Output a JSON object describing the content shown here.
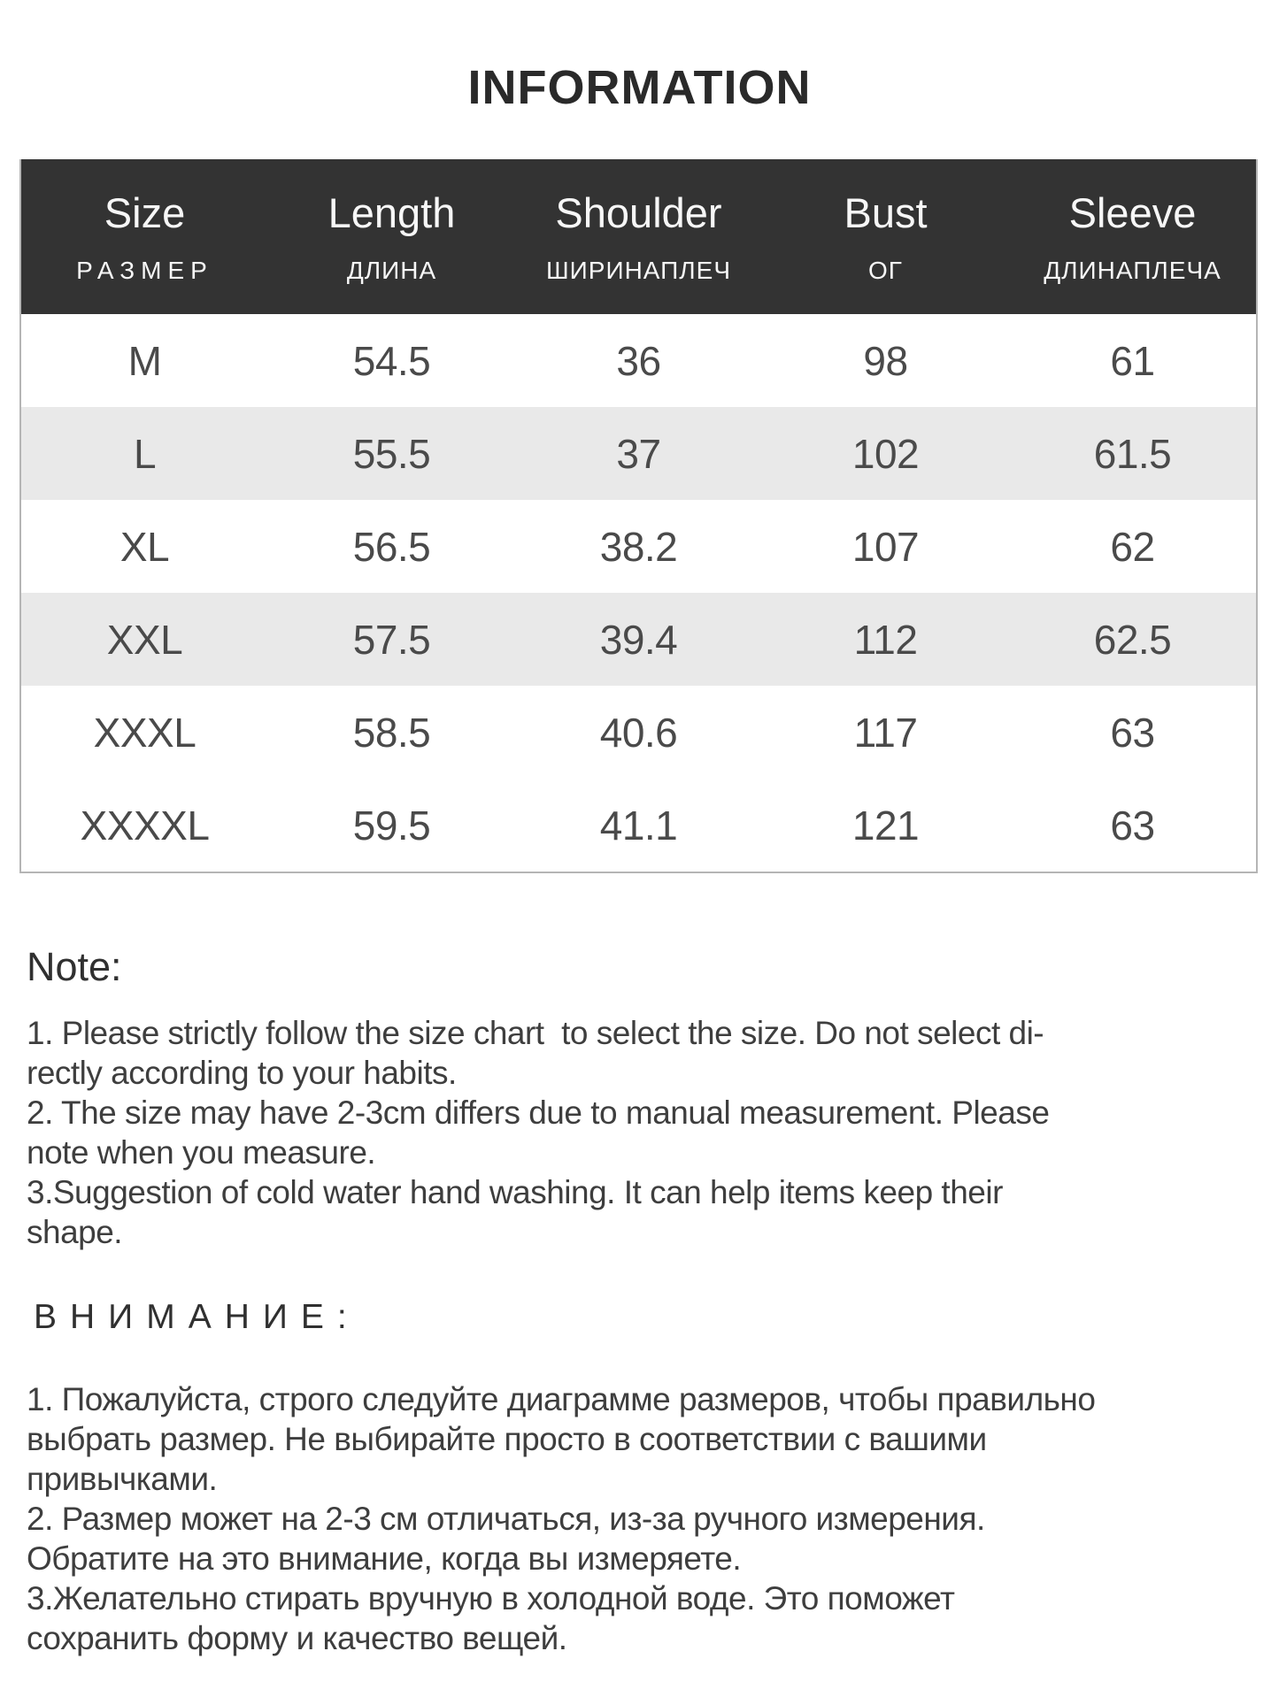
{
  "page": {
    "title": "INFORMATION"
  },
  "size_table": {
    "columns": [
      {
        "en": "Size",
        "ru": "РАЗМЕР"
      },
      {
        "en": "Length",
        "ru": "ДЛИНА"
      },
      {
        "en": "Shoulder",
        "ru": "ШИРИНАПЛЕЧ"
      },
      {
        "en": "Bust",
        "ru": "ОГ"
      },
      {
        "en": "Sleeve",
        "ru": "ДЛИНАПЛЕЧА"
      }
    ],
    "rows": [
      {
        "size": "M",
        "values": [
          "54.5",
          "36",
          "98",
          "61"
        ],
        "shaded": false
      },
      {
        "size": "L",
        "values": [
          "55.5",
          "37",
          "102",
          "61.5"
        ],
        "shaded": true
      },
      {
        "size": "XL",
        "values": [
          "56.5",
          "38.2",
          "107",
          "62"
        ],
        "shaded": false
      },
      {
        "size": "XXL",
        "values": [
          "57.5",
          "39.4",
          "112",
          "62.5"
        ],
        "shaded": true
      },
      {
        "size": "XXXL",
        "values": [
          "58.5",
          "40.6",
          "117",
          "63"
        ],
        "shaded": false
      },
      {
        "size": "XXXXL",
        "values": [
          "59.5",
          "41.1",
          "121",
          "63"
        ],
        "shaded": false
      }
    ]
  },
  "note_en": {
    "heading": "Note:",
    "lines": [
      "1. Please strictly follow the size chart  to select the size. Do not select di-",
      "rectly according to your habits.",
      "2. The size may have 2-3cm differs due to manual measurement. Please",
      "note when you measure.",
      "3.Suggestion of cold water hand washing. It can help items keep their",
      "shape."
    ]
  },
  "note_ru": {
    "heading": "ВНИМАНИЕ:",
    "lines": [
      "1. Пожалуйста, строго следуйте диаграмме размеров, чтобы правильно",
      "выбрать размер. Не выбирайте просто в соответствии с вашими",
      "привычками.",
      "2. Размер может на 2-3 см отличаться, из-за ручного измерения.",
      "Обратите на это внимание, когда вы измеряете.",
      "3.Желательно стирать вручную в холодной воде. Это поможет",
      "сохранить форму и качество вещей."
    ]
  },
  "colors": {
    "header_bg": "#333333",
    "header_text": "#f7f7f7",
    "row_stripe": "#e9e9e9",
    "table_border": "#b5b5b5",
    "text": "#3e3e3e"
  }
}
